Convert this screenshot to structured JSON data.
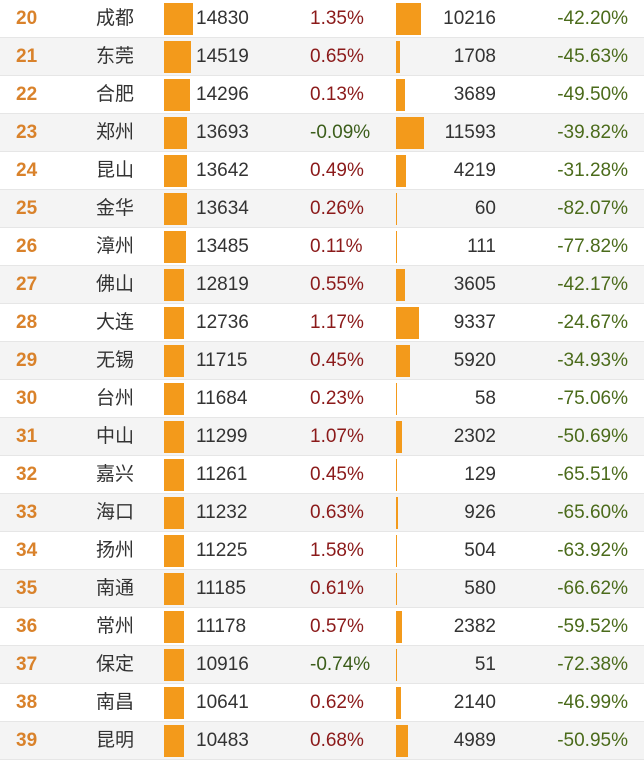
{
  "theme": {
    "bar_color": "#f39a1b",
    "rank_color": "#d9822b",
    "pos_color": "#8b1a1a",
    "neg_color": "#3b5d1a"
  },
  "rows": [
    {
      "rank": "20",
      "city": "成都",
      "value1": "14830",
      "pct": "1.35%",
      "value2": "10216",
      "pct2": "-42.20%"
    },
    {
      "rank": "21",
      "city": "东莞",
      "value1": "14519",
      "pct": "0.65%",
      "value2": "1708",
      "pct2": "-45.63%"
    },
    {
      "rank": "22",
      "city": "合肥",
      "value1": "14296",
      "pct": "0.13%",
      "value2": "3689",
      "pct2": "-49.50%"
    },
    {
      "rank": "23",
      "city": "郑州",
      "value1": "13693",
      "pct": "-0.09%",
      "value2": "11593",
      "pct2": "-39.82%"
    },
    {
      "rank": "24",
      "city": "昆山",
      "value1": "13642",
      "pct": "0.49%",
      "value2": "4219",
      "pct2": "-31.28%"
    },
    {
      "rank": "25",
      "city": "金华",
      "value1": "13634",
      "pct": "0.26%",
      "value2": "60",
      "pct2": "-82.07%"
    },
    {
      "rank": "26",
      "city": "漳州",
      "value1": "13485",
      "pct": "0.11%",
      "value2": "111",
      "pct2": "-77.82%"
    },
    {
      "rank": "27",
      "city": "佛山",
      "value1": "12819",
      "pct": "0.55%",
      "value2": "3605",
      "pct2": "-42.17%"
    },
    {
      "rank": "28",
      "city": "大连",
      "value1": "12736",
      "pct": "1.17%",
      "value2": "9337",
      "pct2": "-24.67%"
    },
    {
      "rank": "29",
      "city": "无锡",
      "value1": "11715",
      "pct": "0.45%",
      "value2": "5920",
      "pct2": "-34.93%"
    },
    {
      "rank": "30",
      "city": "台州",
      "value1": "11684",
      "pct": "0.23%",
      "value2": "58",
      "pct2": "-75.06%"
    },
    {
      "rank": "31",
      "city": "中山",
      "value1": "11299",
      "pct": "1.07%",
      "value2": "2302",
      "pct2": "-50.69%"
    },
    {
      "rank": "32",
      "city": "嘉兴",
      "value1": "11261",
      "pct": "0.45%",
      "value2": "129",
      "pct2": "-65.51%"
    },
    {
      "rank": "33",
      "city": "海口",
      "value1": "11232",
      "pct": "0.63%",
      "value2": "926",
      "pct2": "-65.60%"
    },
    {
      "rank": "34",
      "city": "扬州",
      "value1": "11225",
      "pct": "1.58%",
      "value2": "504",
      "pct2": "-63.92%"
    },
    {
      "rank": "35",
      "city": "南通",
      "value1": "11185",
      "pct": "0.61%",
      "value2": "580",
      "pct2": "-66.62%"
    },
    {
      "rank": "36",
      "city": "常州",
      "value1": "11178",
      "pct": "0.57%",
      "value2": "2382",
      "pct2": "-59.52%"
    },
    {
      "rank": "37",
      "city": "保定",
      "value1": "10916",
      "pct": "-0.74%",
      "value2": "51",
      "pct2": "-72.38%"
    },
    {
      "rank": "38",
      "city": "南昌",
      "value1": "10641",
      "pct": "0.62%",
      "value2": "2140",
      "pct2": "-46.99%"
    },
    {
      "rank": "39",
      "city": "昆明",
      "value1": "10483",
      "pct": "0.68%",
      "value2": "4989",
      "pct2": "-50.95%"
    }
  ]
}
